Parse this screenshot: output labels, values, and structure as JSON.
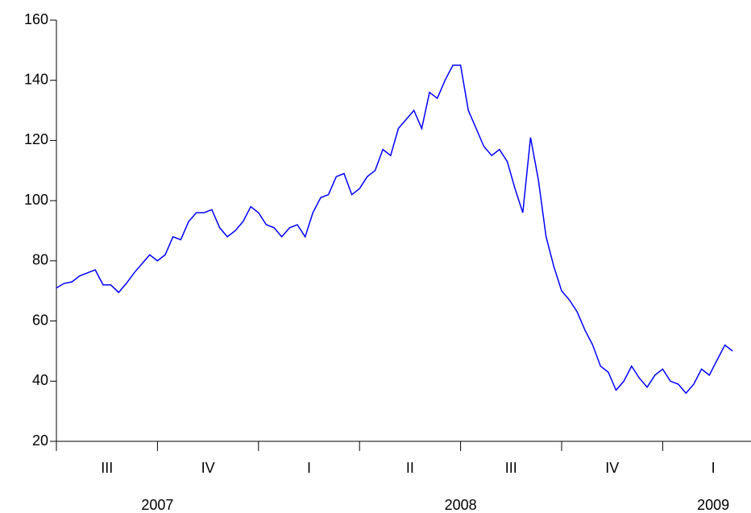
{
  "chart_data": {
    "type": "line",
    "groups": [
      {
        "year": "2007",
        "quarters": [
          {
            "label": "III",
            "values": [
              71,
              72.5,
              73,
              75,
              76,
              77,
              72,
              72,
              69.5,
              72.5,
              76,
              79,
              82
            ]
          },
          {
            "label": "IV",
            "values": [
              80,
              82,
              88,
              87,
              93,
              96,
              96,
              97,
              91,
              88,
              90,
              93,
              98
            ]
          }
        ]
      },
      {
        "year": "2008",
        "quarters": [
          {
            "label": "I",
            "values": [
              96,
              92,
              91,
              88,
              91,
              92,
              88,
              96,
              101,
              102,
              108,
              109,
              102
            ]
          },
          {
            "label": "II",
            "values": [
              104,
              108,
              110,
              117,
              115,
              124,
              127,
              130,
              124,
              136,
              134,
              140,
              145
            ]
          },
          {
            "label": "III",
            "values": [
              145,
              130,
              124,
              118,
              115,
              117,
              113,
              104,
              96,
              121,
              107,
              88,
              78
            ]
          },
          {
            "label": "IV",
            "values": [
              70,
              67,
              63,
              57,
              52,
              45,
              43,
              37,
              40,
              45,
              41,
              38,
              42
            ]
          }
        ]
      },
      {
        "year": "2009",
        "quarters": [
          {
            "label": "I",
            "values": [
              44,
              40,
              39,
              36,
              39,
              44,
              42,
              47,
              52,
              50
            ]
          }
        ]
      }
    ],
    "color": "#0000ff",
    "ylim": [
      20,
      160
    ],
    "yticks": [
      20,
      40,
      60,
      80,
      100,
      120,
      140,
      160
    ]
  }
}
